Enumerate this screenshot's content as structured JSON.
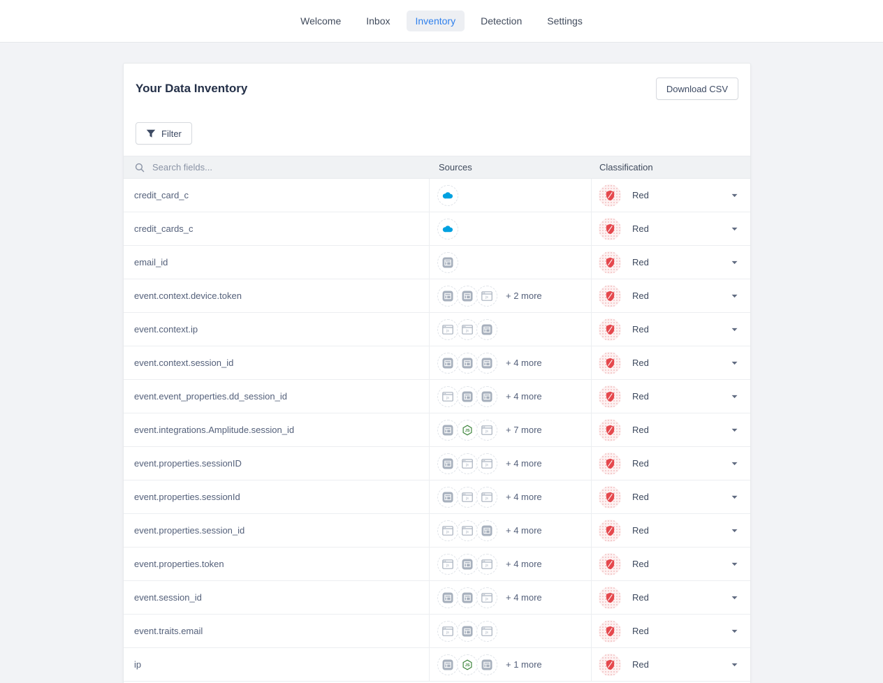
{
  "nav": {
    "items": [
      {
        "label": "Welcome",
        "active": false
      },
      {
        "label": "Inbox",
        "active": false
      },
      {
        "label": "Inventory",
        "active": true
      },
      {
        "label": "Detection",
        "active": false
      },
      {
        "label": "Settings",
        "active": false
      }
    ]
  },
  "panel": {
    "title": "Your Data Inventory",
    "download_button_label": "Download CSV",
    "filter_button_label": "Filter"
  },
  "table": {
    "search_placeholder": "Search fields...",
    "columns": {
      "sources": "Sources",
      "classification": "Classification"
    },
    "rows": [
      {
        "field": "credit_card_c",
        "sources": [
          "salesforce"
        ],
        "more": "",
        "classification": "Red"
      },
      {
        "field": "credit_cards_c",
        "sources": [
          "salesforce"
        ],
        "more": "",
        "classification": "Red"
      },
      {
        "field": "email_id",
        "sources": [
          "window-solid"
        ],
        "more": "",
        "classification": "Red"
      },
      {
        "field": "event.context.device.token",
        "sources": [
          "window-solid",
          "window-solid",
          "window-outline"
        ],
        "more": "+ 2 more",
        "classification": "Red"
      },
      {
        "field": "event.context.ip",
        "sources": [
          "window-outline",
          "window-outline",
          "window-solid"
        ],
        "more": "",
        "classification": "Red"
      },
      {
        "field": "event.context.session_id",
        "sources": [
          "window-solid",
          "window-solid",
          "window-solid"
        ],
        "more": "+ 4 more",
        "classification": "Red"
      },
      {
        "field": "event.event_properties.dd_session_id",
        "sources": [
          "window-outline",
          "window-solid",
          "window-solid"
        ],
        "more": "+ 4 more",
        "classification": "Red"
      },
      {
        "field": "event.integrations.Amplitude.session_id",
        "sources": [
          "window-solid",
          "nodejs",
          "window-outline"
        ],
        "more": "+ 7 more",
        "classification": "Red"
      },
      {
        "field": "event.properties.sessionID",
        "sources": [
          "window-solid",
          "window-outline",
          "window-outline"
        ],
        "more": "+ 4 more",
        "classification": "Red"
      },
      {
        "field": "event.properties.sessionId",
        "sources": [
          "window-solid",
          "window-outline",
          "window-outline"
        ],
        "more": "+ 4 more",
        "classification": "Red"
      },
      {
        "field": "event.properties.session_id",
        "sources": [
          "window-outline",
          "window-outline",
          "window-solid"
        ],
        "more": "+ 4 more",
        "classification": "Red"
      },
      {
        "field": "event.properties.token",
        "sources": [
          "window-outline",
          "window-solid",
          "window-outline"
        ],
        "more": "+ 4 more",
        "classification": "Red"
      },
      {
        "field": "event.session_id",
        "sources": [
          "window-solid",
          "window-solid",
          "window-outline"
        ],
        "more": "+ 4 more",
        "classification": "Red"
      },
      {
        "field": "event.traits.email",
        "sources": [
          "window-outline",
          "window-solid",
          "window-outline"
        ],
        "more": "",
        "classification": "Red"
      },
      {
        "field": "ip",
        "sources": [
          "window-solid",
          "nodejs",
          "window-solid"
        ],
        "more": "+ 1 more",
        "classification": "Red"
      }
    ]
  },
  "icons": {
    "search": "magnifier",
    "filter": "funnel",
    "dropdown": "chevron-down",
    "salesforce": "salesforce-cloud",
    "window-solid": "solid-browser-window",
    "window-outline": "outlined-browser-window",
    "nodejs": "nodejs-hexagon",
    "classification": "red-shield"
  },
  "colors": {
    "accent_blue": "#2F80ED",
    "classification_red": "#E5484D",
    "salesforce_blue": "#00A1E0",
    "nodejs_green": "#3E863D"
  }
}
